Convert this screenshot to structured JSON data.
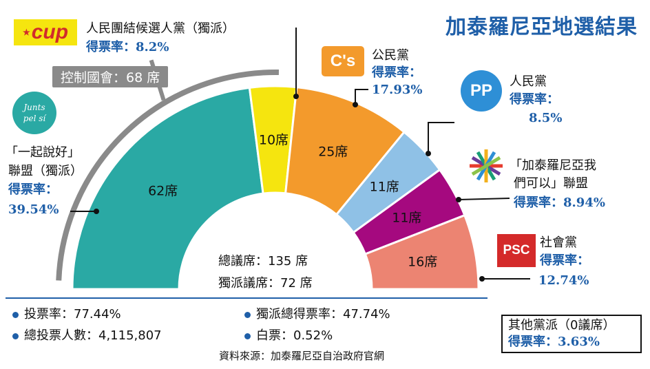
{
  "title": "加泰羅尼亞地選結果",
  "chart_data": {
    "type": "semicircle-seats",
    "total_label": "總議席：135 席",
    "separatist_label": "獨派議席：72 席",
    "majority_label": "控制國會：68 席",
    "seats": [
      {
        "key": "juntspelsi",
        "seats": 62,
        "label": "62席",
        "color": "#2aa9a4"
      },
      {
        "key": "cup",
        "seats": 10,
        "label": "10席",
        "color": "#f5e50f"
      },
      {
        "key": "cs",
        "seats": 25,
        "label": "25席",
        "color": "#f39a2c"
      },
      {
        "key": "pp",
        "seats": 11,
        "label": "11席",
        "color": "#8fc1e6"
      },
      {
        "key": "csqp",
        "seats": 11,
        "label": "11席",
        "color": "#a5097f"
      },
      {
        "key": "psc",
        "seats": 16,
        "label": "16席",
        "color": "#ec8472"
      }
    ]
  },
  "parties": {
    "cup": {
      "name": "人民團結候選人黨（獨派）",
      "rate_label": "得票率：",
      "rate": "8.2%",
      "logo": "cup"
    },
    "cs": {
      "name": "公民黨",
      "rate_label": "得票率：",
      "rate": "17.93%",
      "logo": "C's"
    },
    "pp": {
      "name": "人民黨",
      "rate_label": "得票率：",
      "rate": "8.5%",
      "logo": "PP"
    },
    "csqp": {
      "name_line1": "「加泰羅尼亞我",
      "name_line2": "們可以」聯盟",
      "rate_label": "得票率：",
      "rate": "8.94%"
    },
    "psc": {
      "name": "社會黨",
      "rate_label": "得票率：",
      "rate": "12.74%",
      "logo": "PSC"
    },
    "juntspelsi": {
      "name_line1": "「一起說好」",
      "name_line2": "聯盟（獨派）",
      "rate_label": "得票率：",
      "rate": "39.54%",
      "logo_l1": "Junts",
      "logo_l2": "pel sí"
    },
    "others": {
      "name": "其他黨派（0議席）",
      "rate_label": "得票率：",
      "rate": "3.63%"
    }
  },
  "stats": {
    "turnout": "投票率：77.44%",
    "separatist_share": "獨派總得票率：47.74%",
    "total_voters": "總投票人數：4,115,807",
    "blank": "白票：0.52%"
  },
  "source": "資料來源：加泰羅尼亞自治政府官網",
  "colors": {
    "accent": "#1f5fa8",
    "arc": "#8a8a8a"
  }
}
